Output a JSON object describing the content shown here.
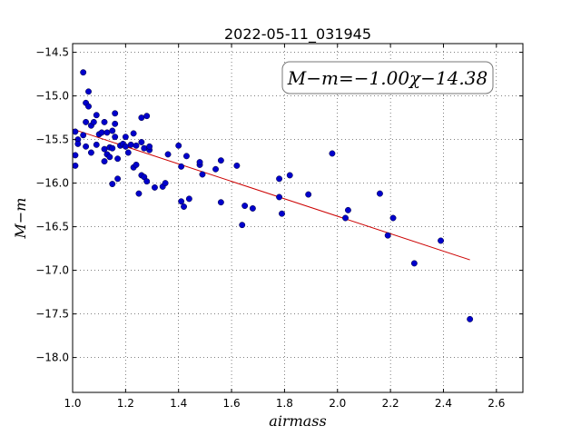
{
  "chart_data": {
    "type": "scatter",
    "title": "2022-05-11_031945",
    "xlabel": "airmass",
    "ylabel": "M−m",
    "xlim": [
      1.0,
      2.7
    ],
    "ylim": [
      -18.4,
      -14.4
    ],
    "grid": true,
    "x_ticks": [
      1.0,
      1.2,
      1.4,
      1.6,
      1.8,
      2.0,
      2.2,
      2.4,
      2.6
    ],
    "x_tick_labels": [
      "1.0",
      "1.2",
      "1.4",
      "1.6",
      "1.8",
      "2.0",
      "2.2",
      "2.4",
      "2.6"
    ],
    "y_ticks": [
      -14.5,
      -15.0,
      -15.5,
      -16.0,
      -16.5,
      -17.0,
      -17.5,
      -18.0
    ],
    "y_tick_labels": [
      "−14.5",
      "−15.0",
      "−15.5",
      "−16.0",
      "−16.5",
      "−17.0",
      "−17.5",
      "−18.0"
    ],
    "annotation": "M−m=−1.00χ−14.38",
    "point_color": "#0000cc",
    "points": [
      [
        1.01,
        -15.41
      ],
      [
        1.01,
        -15.68
      ],
      [
        1.01,
        -15.8
      ],
      [
        1.02,
        -15.5
      ],
      [
        1.02,
        -15.55
      ],
      [
        1.04,
        -14.73
      ],
      [
        1.04,
        -15.45
      ],
      [
        1.05,
        -15.08
      ],
      [
        1.05,
        -15.3
      ],
      [
        1.05,
        -15.58
      ],
      [
        1.06,
        -14.95
      ],
      [
        1.06,
        -15.12
      ],
      [
        1.07,
        -15.34
      ],
      [
        1.07,
        -15.65
      ],
      [
        1.08,
        -15.3
      ],
      [
        1.09,
        -15.22
      ],
      [
        1.09,
        -15.56
      ],
      [
        1.1,
        -15.44
      ],
      [
        1.11,
        -15.42
      ],
      [
        1.12,
        -15.61
      ],
      [
        1.12,
        -15.3
      ],
      [
        1.12,
        -15.75
      ],
      [
        1.13,
        -15.67
      ],
      [
        1.13,
        -15.42
      ],
      [
        1.14,
        -15.59
      ],
      [
        1.14,
        -15.7
      ],
      [
        1.15,
        -15.4
      ],
      [
        1.15,
        -15.6
      ],
      [
        1.15,
        -16.01
      ],
      [
        1.16,
        -15.2
      ],
      [
        1.16,
        -15.32
      ],
      [
        1.16,
        -15.47
      ],
      [
        1.17,
        -15.72
      ],
      [
        1.17,
        -15.95
      ],
      [
        1.18,
        -15.57
      ],
      [
        1.19,
        -15.55
      ],
      [
        1.2,
        -15.47
      ],
      [
        1.2,
        -15.58
      ],
      [
        1.21,
        -15.65
      ],
      [
        1.22,
        -15.56
      ],
      [
        1.23,
        -15.82
      ],
      [
        1.23,
        -15.43
      ],
      [
        1.24,
        -15.57
      ],
      [
        1.24,
        -15.79
      ],
      [
        1.25,
        -16.12
      ],
      [
        1.26,
        -15.25
      ],
      [
        1.26,
        -15.53
      ],
      [
        1.26,
        -15.91
      ],
      [
        1.27,
        -15.6
      ],
      [
        1.27,
        -15.93
      ],
      [
        1.28,
        -15.98
      ],
      [
        1.28,
        -15.23
      ],
      [
        1.29,
        -15.62
      ],
      [
        1.29,
        -15.58
      ],
      [
        1.31,
        -16.05
      ],
      [
        1.34,
        -16.04
      ],
      [
        1.35,
        -16.0
      ],
      [
        1.36,
        -15.67
      ],
      [
        1.4,
        -15.57
      ],
      [
        1.41,
        -15.81
      ],
      [
        1.41,
        -16.21
      ],
      [
        1.42,
        -16.27
      ],
      [
        1.43,
        -15.69
      ],
      [
        1.44,
        -16.18
      ],
      [
        1.48,
        -15.79
      ],
      [
        1.48,
        -15.76
      ],
      [
        1.49,
        -15.9
      ],
      [
        1.54,
        -15.84
      ],
      [
        1.56,
        -15.74
      ],
      [
        1.56,
        -16.22
      ],
      [
        1.62,
        -15.8
      ],
      [
        1.64,
        -16.48
      ],
      [
        1.65,
        -16.26
      ],
      [
        1.68,
        -16.29
      ],
      [
        1.78,
        -16.16
      ],
      [
        1.78,
        -15.95
      ],
      [
        1.79,
        -16.35
      ],
      [
        1.82,
        -15.91
      ],
      [
        1.89,
        -16.13
      ],
      [
        1.98,
        -15.66
      ],
      [
        2.03,
        -16.4
      ],
      [
        2.04,
        -16.31
      ],
      [
        2.16,
        -16.12
      ],
      [
        2.19,
        -16.6
      ],
      [
        2.21,
        -16.4
      ],
      [
        2.29,
        -16.92
      ],
      [
        2.39,
        -16.66
      ],
      [
        2.5,
        -17.56
      ]
    ],
    "fit_line": {
      "color": "#cc0000",
      "points": [
        [
          1.0,
          -15.38
        ],
        [
          2.5,
          -16.88
        ]
      ]
    }
  }
}
